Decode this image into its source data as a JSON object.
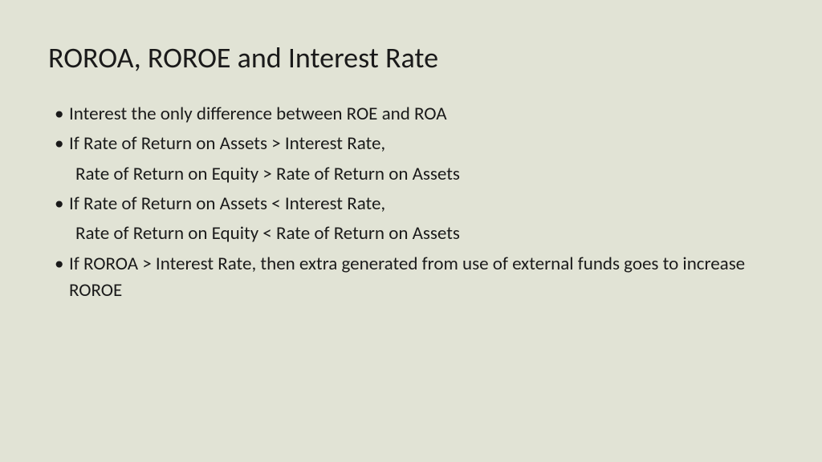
{
  "slide": {
    "title": "ROROA, ROROE and Interest Rate",
    "bullets": [
      {
        "text": "Interest the only difference between ROE and ROA",
        "sub": null
      },
      {
        "text": "If Rate of Return on Assets > Interest Rate,",
        "sub": "Rate of Return on Equity > Rate of Return on Assets"
      },
      {
        "text": "If Rate of Return on Assets < Interest Rate,",
        "sub": "Rate of Return on Equity < Rate of Return on Assets"
      },
      {
        "text": "If ROROA > Interest Rate, then extra generated from use of external funds goes to increase ROROE",
        "sub": null
      }
    ]
  },
  "style": {
    "background_color": "#e1e3d5",
    "text_color": "#1a1a1a",
    "title_fontsize": 36,
    "body_fontsize": 23,
    "font_family": "Calibri"
  }
}
